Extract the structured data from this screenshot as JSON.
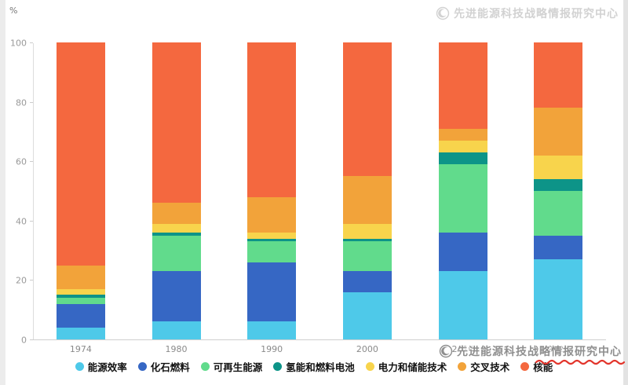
{
  "ylabel_unit": "%",
  "watermark": {
    "text": "先进能源科技战略情报研究中心"
  },
  "chart_data": {
    "type": "bar",
    "stacked": true,
    "title": "",
    "xlabel": "",
    "ylabel": "%",
    "ylim": [
      0,
      100
    ],
    "yticks": [
      0,
      20,
      40,
      60,
      80,
      100
    ],
    "grid": false,
    "legend_position": "bottom",
    "categories": [
      "1974",
      "1980",
      "1990",
      "2000",
      "2010",
      "2020"
    ],
    "series": [
      {
        "name": "能源效率",
        "color": "#4ec9e9",
        "values": [
          4,
          6,
          6,
          16,
          23,
          27
        ]
      },
      {
        "name": "化石燃料",
        "color": "#3667c4",
        "values": [
          8,
          17,
          20,
          7,
          13,
          8
        ]
      },
      {
        "name": "可再生能源",
        "color": "#61db8c",
        "values": [
          2,
          12,
          7,
          10,
          23,
          15
        ]
      },
      {
        "name": "氢能和燃料电池",
        "color": "#0d9488",
        "values": [
          1,
          1,
          1,
          1,
          4,
          4
        ]
      },
      {
        "name": "电力和储能技术",
        "color": "#f8d44c",
        "values": [
          2,
          3,
          2,
          5,
          4,
          8
        ]
      },
      {
        "name": "交叉技术",
        "color": "#f2a33a",
        "values": [
          8,
          7,
          12,
          16,
          4,
          16
        ]
      },
      {
        "name": "核能",
        "color": "#f4683f",
        "values": [
          75,
          54,
          52,
          45,
          29,
          22
        ]
      }
    ]
  },
  "colors": {
    "axis": "#cfcfcf",
    "tick_text": "#999999",
    "xtick_text": "#8a8a8a",
    "watermark_top": "#d2d2d2",
    "watermark_bottom": "#8f8f8f",
    "underline_red": "#e2342b"
  }
}
